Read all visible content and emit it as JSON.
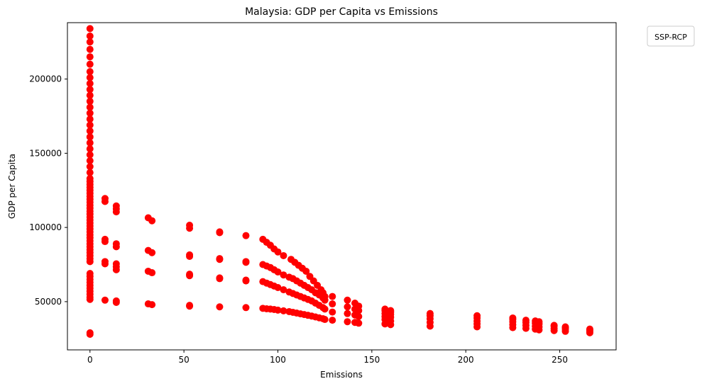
{
  "chart_data": {
    "type": "scatter",
    "title": "Malaysia: GDP per Capita vs Emissions",
    "xlabel": "Emissions",
    "ylabel": "GDP per Capita",
    "xlim": [
      -12,
      280
    ],
    "ylim": [
      17500,
      238000
    ],
    "xticks": [
      0,
      50,
      100,
      150,
      200,
      250
    ],
    "yticks": [
      50000,
      100000,
      150000,
      200000
    ],
    "grid": false,
    "legend": {
      "title": "SSP-RCP",
      "placement": "outside-top-right"
    },
    "marker_color": "#ff0000",
    "series": [
      {
        "points": [
          [
            0,
            28000
          ],
          [
            0,
            29000
          ],
          [
            0,
            51500
          ],
          [
            0,
            53000
          ],
          [
            0,
            55000
          ],
          [
            0,
            57000
          ],
          [
            0,
            59000
          ],
          [
            0,
            61000
          ],
          [
            0,
            63000
          ],
          [
            0,
            65000
          ],
          [
            0,
            67000
          ],
          [
            0,
            69000
          ],
          [
            0,
            77000
          ],
          [
            0,
            79000
          ],
          [
            0,
            81000
          ],
          [
            0,
            83000
          ],
          [
            0,
            85000
          ],
          [
            0,
            87000
          ],
          [
            0,
            89000
          ],
          [
            0,
            91000
          ],
          [
            0,
            93000
          ],
          [
            0,
            95000
          ],
          [
            0,
            97000
          ],
          [
            0,
            99000
          ],
          [
            0,
            101000
          ],
          [
            0,
            103000
          ],
          [
            0,
            105000
          ],
          [
            0,
            107000
          ],
          [
            0,
            109000
          ],
          [
            0,
            111000
          ],
          [
            0,
            113000
          ],
          [
            0,
            115000
          ],
          [
            0,
            117000
          ],
          [
            0,
            119000
          ],
          [
            0,
            121000
          ],
          [
            0,
            123000
          ],
          [
            0,
            125000
          ],
          [
            0,
            127000
          ],
          [
            0,
            129000
          ],
          [
            0,
            131000
          ],
          [
            0,
            133000
          ],
          [
            0,
            137000
          ],
          [
            0,
            141000
          ],
          [
            0,
            145000
          ],
          [
            0,
            149000
          ],
          [
            0,
            153000
          ],
          [
            0,
            157000
          ],
          [
            0,
            161000
          ],
          [
            0,
            165000
          ],
          [
            0,
            169000
          ],
          [
            0,
            173000
          ],
          [
            0,
            177000
          ],
          [
            0,
            181000
          ],
          [
            0,
            185000
          ],
          [
            0,
            189000
          ],
          [
            0,
            193000
          ],
          [
            0,
            197000
          ],
          [
            0,
            201000
          ],
          [
            0,
            205000
          ],
          [
            0,
            210000
          ],
          [
            0,
            215000
          ],
          [
            0,
            220000
          ],
          [
            0,
            225000
          ],
          [
            0,
            229000
          ],
          [
            0,
            234000
          ],
          [
            8,
            51000
          ],
          [
            8,
            75500
          ],
          [
            8,
            77000
          ],
          [
            8,
            90500
          ],
          [
            8,
            92000
          ],
          [
            8,
            117500
          ],
          [
            8,
            119500
          ],
          [
            14,
            49500
          ],
          [
            14,
            50500
          ],
          [
            14,
            71500
          ],
          [
            14,
            73500
          ],
          [
            14,
            75500
          ],
          [
            14,
            87000
          ],
          [
            14,
            89000
          ],
          [
            14,
            110500
          ],
          [
            14,
            112500
          ],
          [
            14,
            114500
          ],
          [
            31,
            48500
          ],
          [
            31,
            70500
          ],
          [
            31,
            84500
          ],
          [
            31,
            106500
          ],
          [
            33,
            48000
          ],
          [
            33,
            69500
          ],
          [
            33,
            83000
          ],
          [
            33,
            104500
          ],
          [
            53,
            47000
          ],
          [
            53,
            47500
          ],
          [
            53,
            67500
          ],
          [
            53,
            68500
          ],
          [
            53,
            80500
          ],
          [
            53,
            81500
          ],
          [
            53,
            99500
          ],
          [
            53,
            101500
          ],
          [
            69,
            46500
          ],
          [
            69,
            65500
          ],
          [
            69,
            66000
          ],
          [
            69,
            78500
          ],
          [
            69,
            79000
          ],
          [
            69,
            96500
          ],
          [
            69,
            97000
          ],
          [
            83,
            46000
          ],
          [
            83,
            64000
          ],
          [
            83,
            64500
          ],
          [
            83,
            76500
          ],
          [
            83,
            77000
          ],
          [
            83,
            94500
          ],
          [
            92,
            45500
          ],
          [
            94,
            45200
          ],
          [
            96,
            45000
          ],
          [
            98,
            44700
          ],
          [
            100,
            44300
          ],
          [
            103,
            43800
          ],
          [
            106,
            43300
          ],
          [
            108,
            42800
          ],
          [
            110,
            42300
          ],
          [
            112,
            41800
          ],
          [
            114,
            41300
          ],
          [
            116,
            40800
          ],
          [
            118,
            40300
          ],
          [
            120,
            39700
          ],
          [
            122,
            39100
          ],
          [
            124,
            38500
          ],
          [
            125,
            38000
          ],
          [
            92,
            63500
          ],
          [
            94,
            62500
          ],
          [
            96,
            61500
          ],
          [
            98,
            60500
          ],
          [
            100,
            59500
          ],
          [
            103,
            58000
          ],
          [
            106,
            56500
          ],
          [
            108,
            55500
          ],
          [
            110,
            54500
          ],
          [
            112,
            53500
          ],
          [
            114,
            52500
          ],
          [
            116,
            51500
          ],
          [
            118,
            50500
          ],
          [
            120,
            49000
          ],
          [
            122,
            47500
          ],
          [
            124,
            46000
          ],
          [
            125,
            45000
          ],
          [
            92,
            75000
          ],
          [
            94,
            74000
          ],
          [
            96,
            73000
          ],
          [
            98,
            71500
          ],
          [
            100,
            70000
          ],
          [
            103,
            68000
          ],
          [
            106,
            66500
          ],
          [
            108,
            65500
          ],
          [
            110,
            64000
          ],
          [
            112,
            62500
          ],
          [
            114,
            61000
          ],
          [
            116,
            59500
          ],
          [
            118,
            58000
          ],
          [
            120,
            56000
          ],
          [
            122,
            54500
          ],
          [
            124,
            52500
          ],
          [
            125,
            51000
          ],
          [
            92,
            92000
          ],
          [
            94,
            90000
          ],
          [
            96,
            88000
          ],
          [
            98,
            85500
          ],
          [
            100,
            83500
          ],
          [
            103,
            81000
          ],
          [
            107,
            78500
          ],
          [
            109,
            76500
          ],
          [
            111,
            74500
          ],
          [
            113,
            72500
          ],
          [
            115,
            70500
          ],
          [
            117,
            67000
          ],
          [
            119,
            64000
          ],
          [
            121,
            61000
          ],
          [
            123,
            58000
          ],
          [
            124,
            56000
          ],
          [
            125,
            53500
          ],
          [
            129,
            37500
          ],
          [
            129,
            43000
          ],
          [
            129,
            48500
          ],
          [
            129,
            53500
          ],
          [
            137,
            36500
          ],
          [
            137,
            42000
          ],
          [
            137,
            46500
          ],
          [
            137,
            51000
          ],
          [
            141,
            36000
          ],
          [
            141,
            41000
          ],
          [
            141,
            45000
          ],
          [
            141,
            49000
          ],
          [
            143,
            35500
          ],
          [
            143,
            40000
          ],
          [
            143,
            44000
          ],
          [
            143,
            47000
          ],
          [
            157,
            35000
          ],
          [
            157,
            38000
          ],
          [
            157,
            40000
          ],
          [
            157,
            42000
          ],
          [
            157,
            44000
          ],
          [
            157,
            45000
          ],
          [
            160,
            34500
          ],
          [
            160,
            37000
          ],
          [
            160,
            39500
          ],
          [
            160,
            41500
          ],
          [
            160,
            43000
          ],
          [
            160,
            44000
          ],
          [
            181,
            33500
          ],
          [
            181,
            36000
          ],
          [
            181,
            38500
          ],
          [
            181,
            40500
          ],
          [
            181,
            42000
          ],
          [
            206,
            33000
          ],
          [
            206,
            35000
          ],
          [
            206,
            37000
          ],
          [
            206,
            39000
          ],
          [
            206,
            40500
          ],
          [
            225,
            32500
          ],
          [
            225,
            34500
          ],
          [
            225,
            36500
          ],
          [
            225,
            38000
          ],
          [
            225,
            39000
          ],
          [
            232,
            32000
          ],
          [
            232,
            34000
          ],
          [
            232,
            36000
          ],
          [
            232,
            37500
          ],
          [
            237,
            31500
          ],
          [
            237,
            33500
          ],
          [
            237,
            35500
          ],
          [
            237,
            37000
          ],
          [
            239,
            31000
          ],
          [
            239,
            33000
          ],
          [
            239,
            35000
          ],
          [
            239,
            36500
          ],
          [
            247,
            30500
          ],
          [
            247,
            32000
          ],
          [
            247,
            33500
          ],
          [
            247,
            34000
          ],
          [
            253,
            30000
          ],
          [
            253,
            31500
          ],
          [
            253,
            32500
          ],
          [
            253,
            33000
          ],
          [
            266,
            29000
          ],
          [
            266,
            30000
          ],
          [
            266,
            31000
          ],
          [
            266,
            31500
          ]
        ]
      }
    ]
  }
}
